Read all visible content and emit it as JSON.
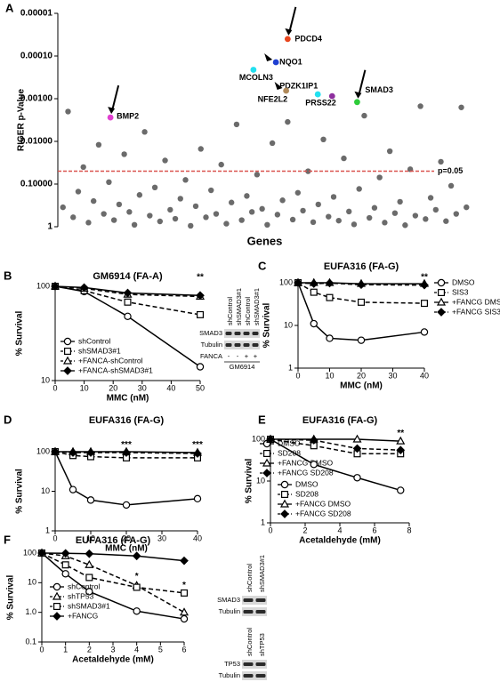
{
  "chart_data": [
    {
      "type": "scatter",
      "panel": "A",
      "y_label": "RIGER p-Value",
      "x_label": "Genes",
      "log_y": true,
      "xlim": [
        0,
        81
      ],
      "ylim": [
        1,
        1e-05
      ],
      "yticks": [
        {
          "value": 1e-05,
          "label": "0.00001"
        },
        {
          "value": 0.0001,
          "label": "0.00010"
        },
        {
          "value": 0.001,
          "label": "0.00100"
        },
        {
          "value": 0.01,
          "label": "0.01000"
        },
        {
          "value": 0.1,
          "label": "0.10000"
        },
        1
      ],
      "color": "#6b6b6b",
      "x": [
        1,
        2,
        3,
        4,
        5,
        6,
        7,
        8,
        9,
        10,
        11,
        12,
        13,
        14,
        15,
        16,
        17,
        18,
        19,
        20,
        21,
        22,
        23,
        24,
        25,
        26,
        27,
        28,
        29,
        30,
        31,
        32,
        33,
        34,
        35,
        36,
        37,
        38,
        39,
        40,
        41,
        42,
        43,
        44,
        45,
        46,
        47,
        48,
        49,
        50,
        51,
        52,
        53,
        54,
        55,
        56,
        57,
        58,
        59,
        60,
        61,
        62,
        63,
        64,
        65,
        66,
        67,
        68,
        69,
        70,
        71,
        72,
        73,
        74,
        75,
        76,
        77,
        78,
        79,
        80
      ],
      "values": [
        0.35,
        0.002,
        0.6,
        0.15,
        0.04,
        0.8,
        0.25,
        0.012,
        0.5,
        0.09,
        0.7,
        0.3,
        0.02,
        0.45,
        0.9,
        0.18,
        0.006,
        0.55,
        0.12,
        0.75,
        0.028,
        0.4,
        0.65,
        0.22,
        0.08,
        0.95,
        0.33,
        0.015,
        0.6,
        0.14,
        0.5,
        0.035,
        0.85,
        0.27,
        0.004,
        0.7,
        0.19,
        0.45,
        0.06,
        0.38,
        0.9,
        0.011,
        0.52,
        0.24,
        0.0035,
        0.68,
        0.16,
        0.42,
        0.05,
        0.78,
        0.3,
        0.009,
        0.58,
        0.2,
        0.72,
        0.025,
        0.44,
        0.88,
        0.13,
        0.0025,
        0.62,
        0.36,
        0.07,
        0.8,
        0.017,
        0.48,
        0.26,
        0.92,
        0.045,
        0.55,
        0.0015,
        0.66,
        0.21,
        0.4,
        0.03,
        0.74,
        0.11,
        0.5,
        0.0016,
        0.35
      ],
      "threshold": {
        "value": 0.05,
        "label": "p=0.05",
        "color": "#d9534f"
      },
      "highlights": [
        {
          "label": "PDCD4",
          "x": 45,
          "value": 4e-05,
          "color": "#e8461e",
          "arrow": "line"
        },
        {
          "label": "NQO1",
          "x": 42.7,
          "value": 0.00014,
          "color": "#1f3fd1",
          "arrow": "head"
        },
        {
          "label": "MCOLN3",
          "x": 38.3,
          "value": 0.00021,
          "color": "#22e0f0",
          "arrow": "none"
        },
        {
          "label": "PDZK1IP1",
          "x": 50.9,
          "value": 0.00079,
          "color": "#22e0f0",
          "arrow": "none"
        },
        {
          "label": "NFE2L2",
          "x": 44.7,
          "value": 0.00065,
          "color": "#b08a5a",
          "arrow": "head"
        },
        {
          "label": "PRSS22",
          "x": 53.7,
          "value": 0.00087,
          "color": "#8e2f9e",
          "arrow": "none"
        },
        {
          "label": "SMAD3",
          "x": 58.6,
          "value": 0.0012,
          "color": "#2ecc3a",
          "arrow": "line"
        },
        {
          "label": "BMP2",
          "x": 10.3,
          "value": 0.00275,
          "color": "#e040d0",
          "arrow": "line"
        }
      ]
    },
    {
      "type": "line",
      "panel": "B",
      "title": "GM6914 (FA-A)",
      "x_label": "MMC (nM)",
      "y_label": "% Survival",
      "log_y": true,
      "xlim": [
        0,
        50
      ],
      "xticks": [
        0,
        10,
        20,
        30,
        40,
        50
      ],
      "ylim": [
        10,
        100
      ],
      "yticks": [
        10,
        100
      ],
      "x": [
        0,
        10,
        25,
        50
      ],
      "series": [
        {
          "name": "shControl",
          "marker": "circle",
          "dashed": false,
          "color": "#000000",
          "values": [
            100,
            88,
            48,
            14
          ]
        },
        {
          "name": "shSMAD3#1",
          "marker": "square",
          "dashed": true,
          "color": "#000000",
          "values": [
            100,
            90,
            68,
            50
          ]
        },
        {
          "name": "+FANCA-shControl",
          "marker": "triangle",
          "dashed": true,
          "color": "#000000",
          "values": [
            100,
            95,
            82,
            78
          ]
        },
        {
          "name": "+FANCA-shSMAD3#1",
          "marker": "diamond",
          "dashed": false,
          "color": "#000000",
          "values": [
            100,
            97,
            85,
            80
          ]
        }
      ],
      "annotations": [
        {
          "text": "**",
          "x": 50,
          "y": 125
        }
      ],
      "insets": [
        {
          "lanes": [
            "shControl",
            "shSMAD3#1",
            "shControl",
            "shSMAD3#1"
          ],
          "rows": [
            "SMAD3",
            "Tubulin"
          ],
          "sign_label": "FANCA",
          "signs": [
            "-",
            "-",
            "+",
            "+"
          ],
          "caption": "GM6914"
        }
      ]
    },
    {
      "type": "line",
      "panel": "C",
      "title": "EUFA316 (FA-G)",
      "x_label": "MMC (nM)",
      "y_label": "% Survival",
      "log_y": true,
      "xlim": [
        0,
        40
      ],
      "xticks": [
        0,
        10,
        20,
        30,
        40
      ],
      "ylim": [
        1,
        100
      ],
      "yticks": [
        1,
        10,
        100
      ],
      "x": [
        0,
        5,
        10,
        20,
        40
      ],
      "series": [
        {
          "name": "DMSO",
          "marker": "circle",
          "dashed": false,
          "color": "#000000",
          "values": [
            100,
            11,
            5,
            4.5,
            7
          ]
        },
        {
          "name": "SIS3",
          "marker": "square",
          "dashed": true,
          "color": "#000000",
          "values": [
            100,
            60,
            45,
            35,
            33
          ]
        },
        {
          "name": "+FANCG DMSO",
          "marker": "triangle",
          "dashed": false,
          "color": "#000000",
          "values": [
            100,
            100,
            100,
            95,
            95
          ]
        },
        {
          "name": "+FANCG SIS3",
          "marker": "diamond",
          "dashed": true,
          "color": "#000000",
          "values": [
            100,
            95,
            98,
            90,
            88
          ]
        }
      ],
      "annotations": [
        {
          "text": "**",
          "x": 40,
          "y": 135
        }
      ]
    },
    {
      "type": "line",
      "panel": "D",
      "title": "EUFA316 (FA-G)",
      "x_label": "MMC (nM)",
      "y_label": "% Survival",
      "log_y": true,
      "xlim": [
        0,
        40
      ],
      "xticks": [
        0,
        10,
        20,
        30,
        40
      ],
      "ylim": [
        1,
        100
      ],
      "yticks": [
        1,
        10,
        100
      ],
      "x": [
        0,
        5,
        10,
        20,
        40
      ],
      "series": [
        {
          "name": "DMSO",
          "marker": "circle",
          "dashed": false,
          "color": "#000000",
          "values": [
            100,
            11,
            6,
            4.5,
            6.5
          ]
        },
        {
          "name": "SD208",
          "marker": "square",
          "dashed": true,
          "color": "#000000",
          "values": [
            100,
            80,
            75,
            70,
            70
          ]
        },
        {
          "name": "+FANCG DMSO",
          "marker": "triangle",
          "dashed": false,
          "color": "#000000",
          "values": [
            100,
            100,
            100,
            100,
            95
          ]
        },
        {
          "name": "+FANCG SD208",
          "marker": "diamond",
          "dashed": true,
          "color": "#000000",
          "values": [
            100,
            95,
            95,
            95,
            90
          ]
        }
      ],
      "annotations": [
        {
          "text": "***",
          "x": 20,
          "y": 150
        },
        {
          "text": "***",
          "x": 40,
          "y": 150
        }
      ]
    },
    {
      "type": "line",
      "panel": "E",
      "title": "EUFA316 (FA-G)",
      "x_label": "Acetaldehyde (mM)",
      "y_label": "% Survival",
      "log_y": true,
      "xlim": [
        0,
        8
      ],
      "xticks": [
        0,
        2,
        4,
        6,
        8
      ],
      "ylim": [
        1,
        100
      ],
      "yticks": [
        1,
        10,
        100
      ],
      "x": [
        0,
        2.5,
        5,
        7.5
      ],
      "series": [
        {
          "name": "DMSO",
          "marker": "circle",
          "dashed": false,
          "color": "#000000",
          "values": [
            100,
            25,
            12,
            6
          ]
        },
        {
          "name": "SD208",
          "marker": "square",
          "dashed": true,
          "color": "#000000",
          "values": [
            100,
            70,
            45,
            45
          ]
        },
        {
          "name": "+FANCG DMSO",
          "marker": "triangle",
          "dashed": false,
          "color": "#000000",
          "values": [
            100,
            100,
            100,
            90
          ]
        },
        {
          "name": "+FANCG SD208",
          "marker": "diamond",
          "dashed": true,
          "color": "#000000",
          "values": [
            100,
            95,
            60,
            55
          ]
        }
      ],
      "annotations": [
        {
          "text": "**",
          "x": 7.5,
          "y": 140
        }
      ]
    },
    {
      "type": "line",
      "panel": "F",
      "title": "EUFA316 (FA-G)",
      "x_label": "Acetaldehyde (mM)",
      "y_label": "% Survival",
      "log_y": true,
      "xlim": [
        0,
        6
      ],
      "xticks": [
        0,
        1,
        2,
        3,
        4,
        5,
        6
      ],
      "ylim": [
        0.1,
        100
      ],
      "yticks": [
        0.1,
        {
          "value": 1,
          "label": "1.0"
        },
        10,
        100
      ],
      "x": [
        0,
        1,
        2,
        4,
        6
      ],
      "series": [
        {
          "name": "shControl",
          "marker": "circle",
          "dashed": false,
          "color": "#000000",
          "values": [
            100,
            20,
            5,
            1.1,
            0.6
          ]
        },
        {
          "name": "shTP53",
          "marker": "triangle",
          "dashed": true,
          "color": "#000000",
          "values": [
            100,
            80,
            40,
            8,
            1
          ]
        },
        {
          "name": "shSMAD3#1",
          "marker": "square",
          "dashed": true,
          "color": "#000000",
          "values": [
            100,
            40,
            15,
            7,
            4.5
          ]
        },
        {
          "name": "+FANCG",
          "marker": "diamond",
          "dashed": false,
          "color": "#000000",
          "values": [
            100,
            98,
            95,
            80,
            55
          ]
        }
      ],
      "annotations": [
        {
          "text": "*",
          "x": 4,
          "y": 16
        },
        {
          "text": "*",
          "x": 6,
          "y": 8
        }
      ],
      "insets": [
        {
          "lanes": [
            "shControl",
            "shSMAD3#1"
          ],
          "rows": [
            "SMAD3",
            "Tubulin"
          ]
        },
        {
          "lanes": [
            "shControl",
            "shTP53"
          ],
          "rows": [
            "TP53",
            "Tubulin"
          ]
        }
      ]
    }
  ]
}
